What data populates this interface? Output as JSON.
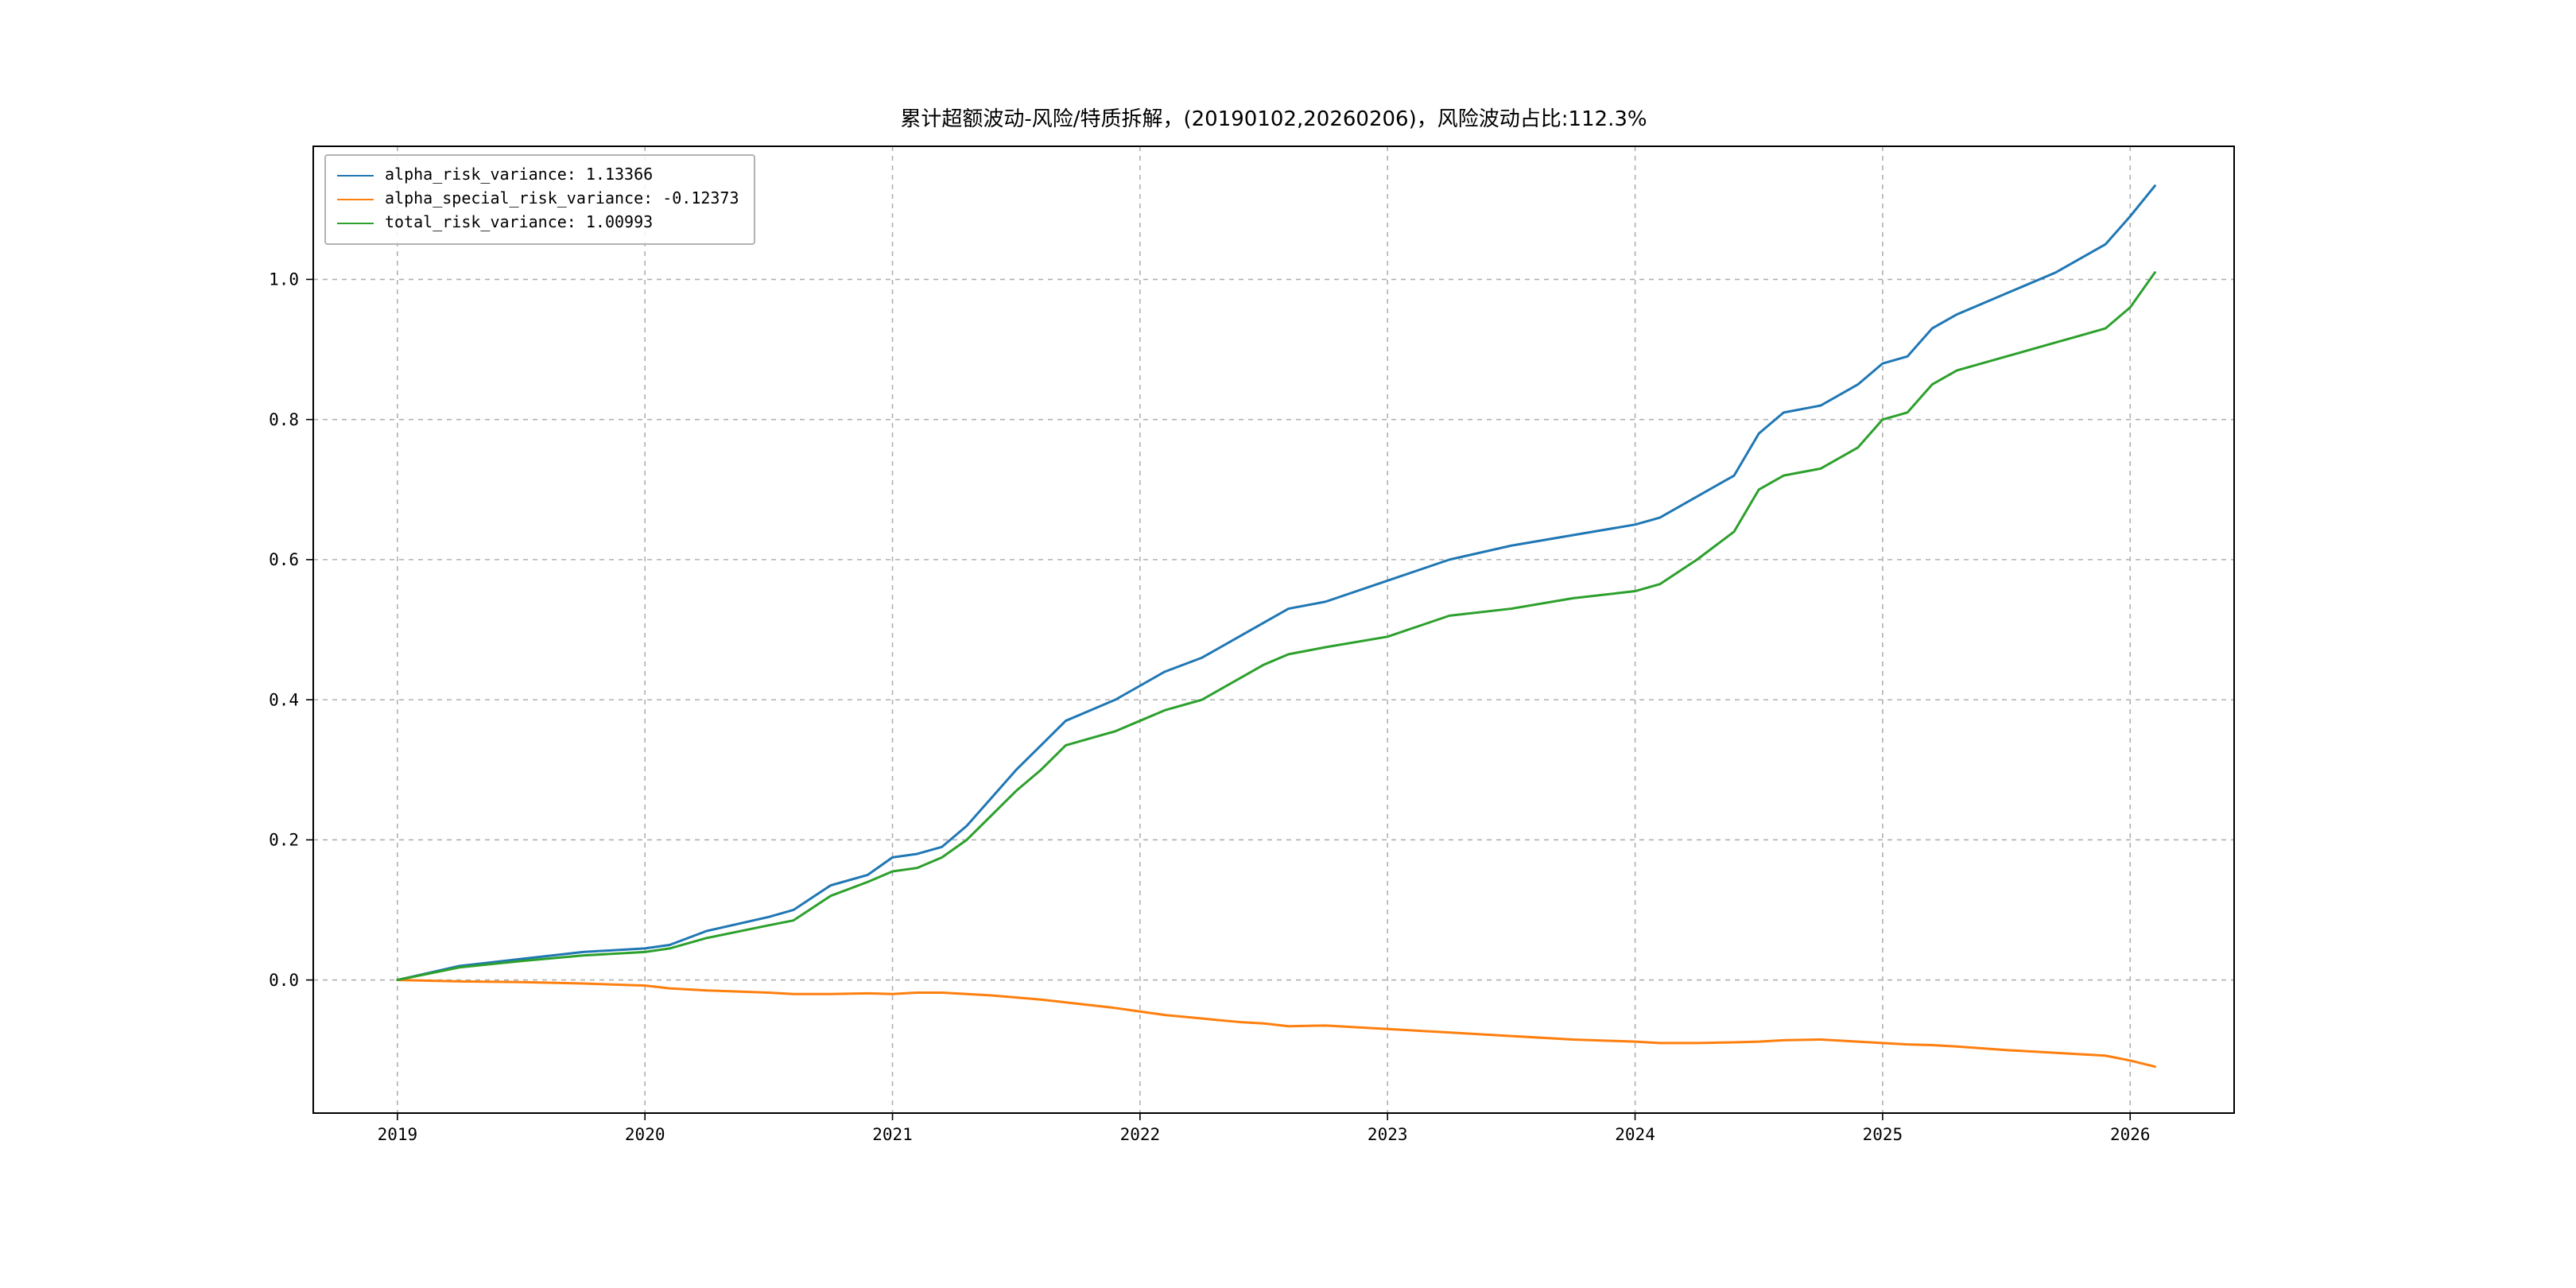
{
  "chart_data": {
    "type": "line",
    "title": "累计超额波动-风险/特质拆解，(20190102,20260206)，风险波动占比:112.3%",
    "xlabel": "",
    "ylabel": "",
    "xlim": [
      2018.66,
      2026.42
    ],
    "ylim": [
      -0.19,
      1.19
    ],
    "xticks": [
      2019,
      2020,
      2021,
      2022,
      2023,
      2024,
      2025,
      2026
    ],
    "yticks": [
      0.0,
      0.2,
      0.4,
      0.6,
      0.8,
      1.0
    ],
    "grid": true,
    "grid_style": "dashed",
    "grid_color": "#b0b0b0",
    "legend_position": "upper left",
    "x": [
      2019.0,
      2019.25,
      2019.5,
      2019.75,
      2020.0,
      2020.1,
      2020.25,
      2020.5,
      2020.6,
      2020.75,
      2020.9,
      2021.0,
      2021.1,
      2021.2,
      2021.3,
      2021.4,
      2021.5,
      2021.6,
      2021.7,
      2021.8,
      2021.9,
      2022.0,
      2022.1,
      2022.25,
      2022.4,
      2022.5,
      2022.6,
      2022.75,
      2023.0,
      2023.25,
      2023.5,
      2023.75,
      2024.0,
      2024.1,
      2024.25,
      2024.4,
      2024.5,
      2024.6,
      2024.75,
      2024.9,
      2025.0,
      2025.1,
      2025.2,
      2025.3,
      2025.5,
      2025.7,
      2025.8,
      2025.9,
      2026.0,
      2026.1
    ],
    "series": [
      {
        "name": "alpha_risk_variance",
        "final_value": 1.13366,
        "legend_label": "alpha_risk_variance: 1.13366",
        "color": "#1f77b4",
        "values": [
          0.0,
          0.02,
          0.03,
          0.04,
          0.045,
          0.05,
          0.07,
          0.09,
          0.1,
          0.135,
          0.15,
          0.175,
          0.18,
          0.19,
          0.22,
          0.26,
          0.3,
          0.335,
          0.37,
          0.385,
          0.4,
          0.42,
          0.44,
          0.46,
          0.49,
          0.51,
          0.53,
          0.54,
          0.57,
          0.6,
          0.62,
          0.635,
          0.65,
          0.66,
          0.69,
          0.72,
          0.78,
          0.81,
          0.82,
          0.85,
          0.88,
          0.89,
          0.93,
          0.95,
          0.98,
          1.01,
          1.03,
          1.05,
          1.09,
          1.13366
        ]
      },
      {
        "name": "alpha_special_risk_variance",
        "final_value": -0.12373,
        "legend_label": "alpha_special_risk_variance: -0.12373",
        "color": "#ff7f0e",
        "values": [
          0.0,
          -0.002,
          -0.003,
          -0.005,
          -0.008,
          -0.012,
          -0.015,
          -0.018,
          -0.02,
          -0.02,
          -0.019,
          -0.02,
          -0.018,
          -0.018,
          -0.02,
          -0.022,
          -0.025,
          -0.028,
          -0.032,
          -0.036,
          -0.04,
          -0.045,
          -0.05,
          -0.055,
          -0.06,
          -0.062,
          -0.066,
          -0.065,
          -0.07,
          -0.075,
          -0.08,
          -0.085,
          -0.088,
          -0.09,
          -0.09,
          -0.089,
          -0.088,
          -0.086,
          -0.085,
          -0.088,
          -0.09,
          -0.092,
          -0.093,
          -0.095,
          -0.1,
          -0.104,
          -0.106,
          -0.108,
          -0.115,
          -0.12373
        ]
      },
      {
        "name": "total_risk_variance",
        "final_value": 1.00993,
        "legend_label": "total_risk_variance: 1.00993",
        "color": "#2ca02c",
        "values": [
          0.0,
          0.018,
          0.027,
          0.035,
          0.04,
          0.045,
          0.06,
          0.078,
          0.085,
          0.12,
          0.14,
          0.155,
          0.16,
          0.175,
          0.2,
          0.235,
          0.27,
          0.3,
          0.335,
          0.345,
          0.355,
          0.37,
          0.385,
          0.4,
          0.43,
          0.45,
          0.465,
          0.475,
          0.49,
          0.52,
          0.53,
          0.545,
          0.555,
          0.565,
          0.6,
          0.64,
          0.7,
          0.72,
          0.73,
          0.76,
          0.8,
          0.81,
          0.85,
          0.87,
          0.89,
          0.91,
          0.92,
          0.93,
          0.96,
          1.00993
        ]
      }
    ]
  }
}
